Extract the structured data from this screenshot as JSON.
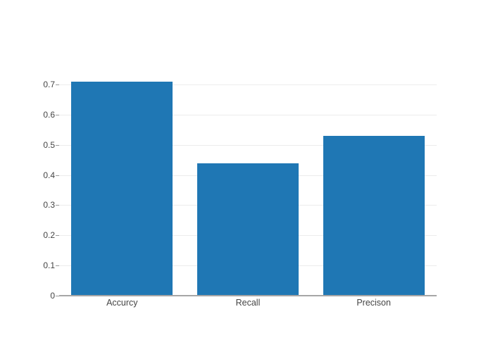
{
  "figure": {
    "background": "#ffffff",
    "title": ""
  },
  "chart_data": {
    "type": "bar",
    "categories": [
      "Accurcy",
      "Recall",
      "Precison"
    ],
    "values": [
      0.71,
      0.44,
      0.53
    ],
    "title": "",
    "subtitle": "",
    "xlabel": "",
    "ylabel": "",
    "ylim": [
      0,
      0.747
    ],
    "yticks": [
      0,
      0.1,
      0.2,
      0.3,
      0.4,
      0.5,
      0.6,
      0.7
    ],
    "grid": true,
    "legend_position": "none",
    "bar_color": "#1f77b4",
    "gridline_color": "#ececec",
    "zeroline_color": "#a6a6a6",
    "tick_mark_color": "#999999",
    "tick_label_color": "#444444"
  }
}
